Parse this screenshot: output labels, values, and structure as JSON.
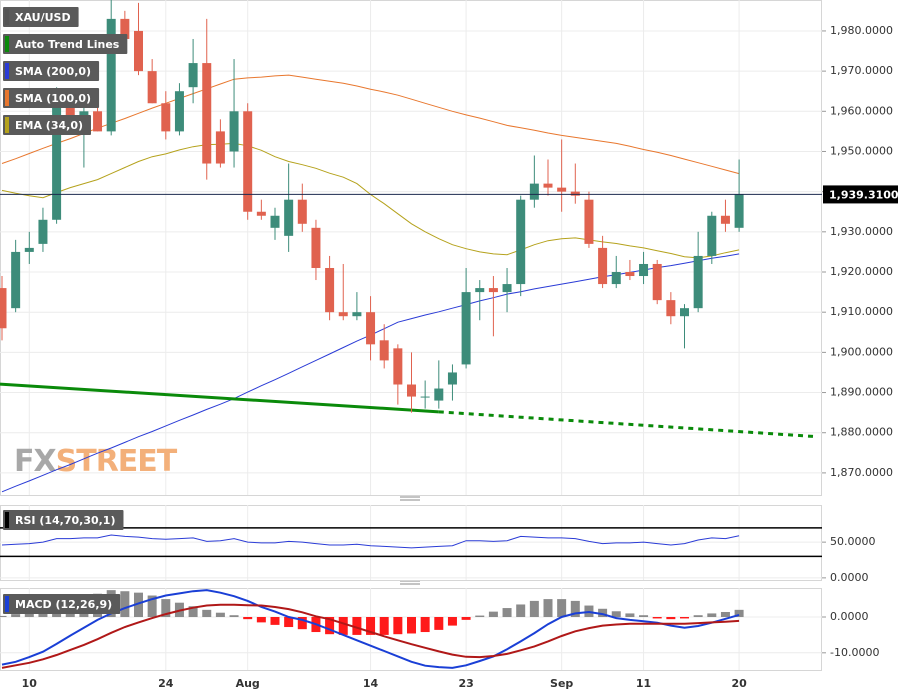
{
  "chart_data": [
    {
      "type": "candlestick",
      "name": "XAU/USD",
      "legend_color": "#555555",
      "up_color": "#3d8c7a",
      "down_color": "#e0624f",
      "grid": true,
      "categories": [
        null,
        null,
        "10",
        null,
        null,
        null,
        null,
        null,
        null,
        null,
        null,
        null,
        "24",
        null,
        null,
        null,
        null,
        null,
        "Aug",
        null,
        null,
        null,
        null,
        null,
        null,
        null,
        null,
        "14",
        null,
        null,
        null,
        null,
        null,
        null,
        "23",
        null,
        null,
        null,
        null,
        null,
        null,
        "Sep",
        null,
        null,
        null,
        null,
        null,
        "11",
        null,
        null,
        null,
        null,
        null,
        null,
        "20"
      ],
      "open": [
        1916,
        1911,
        1925,
        1927,
        1933,
        1962,
        1958,
        1960,
        1955,
        1983,
        1980,
        1970,
        1962,
        1955,
        1966,
        1972,
        1955,
        1950,
        1960,
        1935,
        1931,
        1929,
        1938,
        1931,
        1921,
        1910,
        1909,
        1910,
        1903,
        1901,
        1892,
        1889,
        1888,
        1892,
        1897,
        1915,
        1916,
        1915,
        1917,
        1938,
        1942,
        1941,
        1940,
        1938,
        1926,
        1917,
        1920,
        1919,
        1922,
        1913,
        1909,
        1911,
        1924,
        1934,
        1931
      ],
      "high": [
        1919,
        1928,
        1930,
        1936,
        1966,
        1964,
        1963,
        1962,
        1988,
        1985,
        1987,
        1973,
        1965,
        1967,
        1978,
        1983,
        1958,
        1973,
        1962,
        1938,
        1936,
        1947,
        1942,
        1933,
        1924,
        1922,
        1915,
        1914,
        1907,
        1902,
        1900,
        1893,
        1898,
        1897,
        1921,
        1918,
        1919,
        1921,
        1939,
        1949,
        1948,
        1953,
        1947,
        1940,
        1929,
        1924,
        1923,
        1925,
        1923,
        1915,
        1912,
        1930,
        1935,
        1938,
        1948
      ],
      "low": [
        1903,
        1910,
        1922,
        1925,
        1932,
        1955,
        1946,
        1955,
        1954,
        1976,
        1969,
        1962,
        1953,
        1954,
        1962,
        1943,
        1946,
        1946,
        1933,
        1933,
        1928,
        1925,
        1930,
        1918,
        1908,
        1908,
        1908,
        1898,
        1896,
        1887,
        1885,
        1886,
        1886,
        1888,
        1896,
        1908,
        1904,
        1910,
        1914,
        1936,
        1939,
        1935,
        1937,
        1926,
        1916,
        1916,
        1918,
        1917,
        1912,
        1907,
        1901,
        1910,
        1922,
        1930,
        1930
      ],
      "close": [
        1906,
        1925,
        1926,
        1933,
        1962,
        1958,
        1960,
        1955,
        1983,
        1978,
        1970,
        1962,
        1955,
        1965,
        1972,
        1947,
        1947,
        1960,
        1935,
        1934,
        1934,
        1938,
        1932,
        1921,
        1910,
        1909,
        1910,
        1902,
        1898,
        1892,
        1889,
        1889,
        1891,
        1895,
        1915,
        1916,
        1915,
        1917,
        1938,
        1942,
        1941,
        1940,
        1939,
        1927,
        1917,
        1920,
        1919,
        1922,
        1913,
        1909,
        1911,
        1924,
        1934,
        1932,
        1939.31
      ],
      "series": [
        {
          "name": "SMA (200,0)",
          "color": "#2a3bd6",
          "values": [
            1865.3,
            1866.7,
            1868,
            1869.4,
            1870.8,
            1872.1,
            1873.5,
            1874.9,
            1876.2,
            1877.6,
            1879,
            1880.3,
            1881.7,
            1883.1,
            1884.4,
            1885.8,
            1887.1,
            1888.5,
            1890.1,
            1891.7,
            1893.2,
            1894.8,
            1896.4,
            1898,
            1899.6,
            1901.2,
            1902.8,
            1904.3,
            1905.9,
            1907.5,
            1908.4,
            1909.3,
            1910.1,
            1911,
            1911.9,
            1912.8,
            1913.6,
            1914.5,
            1915.1,
            1915.8,
            1916.4,
            1917,
            1917.6,
            1918.2,
            1918.8,
            1919.3,
            1919.9,
            1920.5,
            1921.1,
            1921.6,
            1922.2,
            1922.8,
            1923.4,
            1923.9,
            1924.5
          ]
        },
        {
          "name": "SMA (100,0)",
          "color": "#e8772e",
          "values": [
            1947,
            1948.2,
            1949.5,
            1950.8,
            1952,
            1953.2,
            1954.5,
            1955.8,
            1957,
            1958.2,
            1959.5,
            1960.8,
            1962,
            1963.2,
            1964.4,
            1965.6,
            1966.8,
            1968,
            1968.3,
            1968.5,
            1968.8,
            1969,
            1968.5,
            1968,
            1967.5,
            1967,
            1966.3,
            1965.5,
            1964.8,
            1964,
            1963,
            1962,
            1961,
            1960,
            1959.1,
            1958.3,
            1957.4,
            1956.5,
            1955.9,
            1955.3,
            1954.6,
            1954,
            1953.5,
            1953,
            1952.5,
            1952,
            1951.3,
            1950.5,
            1949.8,
            1949,
            1948.1,
            1947.2,
            1946.3,
            1945.4,
            1944.5
          ]
        },
        {
          "name": "EMA (34,0)",
          "color": "#b5a21c",
          "values": [
            1940.3,
            1939.6,
            1939,
            1938.5,
            1939.8,
            1941,
            1942,
            1943,
            1944.5,
            1946,
            1947.5,
            1948.7,
            1949.4,
            1950.4,
            1951.2,
            1951.7,
            1951.8,
            1952,
            1951.4,
            1950.3,
            1948.7,
            1947.5,
            1946.7,
            1945.8,
            1944.6,
            1943.6,
            1942,
            1939.3,
            1937,
            1934.5,
            1932,
            1930,
            1928.3,
            1926.8,
            1925.8,
            1925,
            1924.5,
            1924.3,
            1925.5,
            1926.8,
            1927.8,
            1928.3,
            1928.5,
            1928,
            1927.5,
            1927.1,
            1926.5,
            1926,
            1925.3,
            1924.6,
            1923.8,
            1923.5,
            1924,
            1924.8,
            1925.5
          ]
        }
      ],
      "trend_line": {
        "name": "Auto Trend Lines",
        "color": "#0a8a0a",
        "values": [
          1892.1,
          1885.2,
          1879.0
        ]
      },
      "last_price": {
        "value": 1939.31,
        "label": "1,939.3100"
      },
      "ylim": [
        1864.5,
        1987.7
      ],
      "yticks": [
        {
          "value": 1870,
          "label": "1,870.0000"
        },
        {
          "value": 1880,
          "label": "1,880.0000"
        },
        {
          "value": 1890,
          "label": "1,890.0000"
        },
        {
          "value": 1900,
          "label": "1,900.0000"
        },
        {
          "value": 1910,
          "label": "1,910.0000"
        },
        {
          "value": 1920,
          "label": "1,920.0000"
        },
        {
          "value": 1930,
          "label": "1,930.0000"
        },
        {
          "value": 1940,
          "label": "1,940.0000"
        },
        {
          "value": 1950,
          "label": "1,950.0000"
        },
        {
          "value": 1960,
          "label": "1,960.0000"
        },
        {
          "value": 1970,
          "label": "1,970.0000"
        },
        {
          "value": 1980,
          "label": "1,980.0000"
        }
      ],
      "watermark": [
        "FX",
        "STREET"
      ]
    },
    {
      "type": "rsi",
      "name": "RSI (14,70,30,1)",
      "color": "#2a3bd6",
      "levels": [
        70,
        30
      ],
      "values": [
        46,
        47,
        48,
        50,
        55,
        55,
        56,
        56,
        60,
        58,
        57,
        55,
        54,
        55,
        56,
        51,
        52,
        55,
        50,
        49,
        49,
        51,
        50,
        48,
        46,
        46,
        47,
        45,
        44,
        43,
        42,
        43,
        44,
        45,
        52,
        52,
        51,
        52,
        58,
        57,
        56,
        56,
        55,
        51,
        48,
        49,
        49,
        50,
        48,
        46,
        48,
        53,
        56,
        55,
        59
      ],
      "ylim": [
        -3,
        102
      ],
      "yticks": [
        {
          "value": 0,
          "label": "0.0000"
        },
        {
          "value": 50,
          "label": "50.0000"
        }
      ]
    },
    {
      "type": "macd",
      "name": "MACD (12,26,9)",
      "series": [
        {
          "color": "#1a3fd6",
          "values": [
            -13.3,
            -12.5,
            -11.2,
            -9.7,
            -7.5,
            -5.2,
            -3,
            -0.8,
            1,
            2.5,
            3.8,
            5,
            6,
            6.6,
            7.2,
            7.5,
            6.8,
            5.8,
            4.5,
            2.8,
            1.5,
            0,
            -0.8,
            -2,
            -3.5,
            -5,
            -6.5,
            -8,
            -9.5,
            -11,
            -12.5,
            -13.6,
            -14,
            -14.2,
            -13.5,
            -12.3,
            -11,
            -9,
            -6.8,
            -4.5,
            -2,
            0,
            1,
            1.4,
            0.8,
            -0.3,
            -0.8,
            -1.2,
            -1.6,
            -2.4,
            -3,
            -2.5,
            -1.6,
            -0.5,
            0.6
          ]
        },
        {
          "color": "#b01818",
          "values": [
            -14.2,
            -13.5,
            -12.8,
            -11.8,
            -10.6,
            -9.2,
            -7.8,
            -6.2,
            -4.4,
            -2.8,
            -1.5,
            -0.3,
            0.8,
            1.8,
            2.6,
            3.2,
            3.4,
            3.4,
            3.3,
            3.2,
            2.8,
            2.2,
            1.3,
            0.2,
            -0.6,
            -1.8,
            -3,
            -4.2,
            -5.4,
            -6.5,
            -7.6,
            -8.6,
            -9.6,
            -10.5,
            -11.1,
            -11.2,
            -10.9,
            -10.3,
            -9.3,
            -8.2,
            -6.8,
            -5.3,
            -4,
            -3.1,
            -2.4,
            -2.1,
            -1.9,
            -1.9,
            -1.9,
            -1.9,
            -1.9,
            -1.7,
            -1.5,
            -1.3,
            -1.1
          ]
        }
      ],
      "histogram": {
        "up_color": "#8a8a8a",
        "down_color": "#ff1a1a",
        "values": [
          0.3,
          0.8,
          1.6,
          2.5,
          3.5,
          4.5,
          5.5,
          6.5,
          7.5,
          7.2,
          6.8,
          6,
          5,
          4,
          3,
          2,
          1.2,
          0.5,
          -0.6,
          -1.5,
          -2.2,
          -2.8,
          -3.4,
          -4.2,
          -4.8,
          -5,
          -5,
          -5,
          -5,
          -4.8,
          -4.6,
          -4.2,
          -3.6,
          -2.4,
          -0.8,
          0.4,
          1.5,
          2.5,
          3.5,
          4.5,
          5,
          5,
          4.5,
          3.2,
          2.3,
          1.6,
          1,
          0.5,
          -0.4,
          -0.6,
          -0.4,
          0.5,
          1,
          1.4,
          2
        ]
      },
      "ylim": [
        -14.8,
        8.1
      ],
      "yticks": [
        {
          "value": -10,
          "label": "-10.0000"
        },
        {
          "value": 0,
          "label": "0.0000"
        }
      ]
    }
  ]
}
